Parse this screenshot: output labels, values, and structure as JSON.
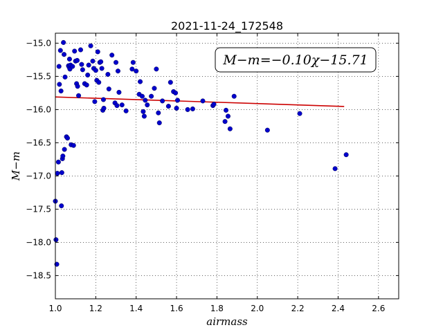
{
  "chart_data": {
    "type": "scatter",
    "title": "2021-11-24_172548",
    "xlabel": "airmass",
    "ylabel": "M−m",
    "xlim": [
      1.0,
      2.7
    ],
    "ylim": [
      -18.85,
      -14.85
    ],
    "y_inverted": true,
    "grid": true,
    "grid_style": "dotted",
    "xticks": [
      1.0,
      1.2,
      1.4,
      1.6,
      1.8,
      2.0,
      2.2,
      2.4,
      2.6
    ],
    "xtick_labels": [
      "1.0",
      "1.2",
      "1.4",
      "1.6",
      "1.8",
      "2.0",
      "2.2",
      "2.4",
      "2.6"
    ],
    "yticks": [
      -15.0,
      -15.5,
      -16.0,
      -16.5,
      -17.0,
      -17.5,
      -18.0,
      -18.5
    ],
    "ytick_labels": [
      "−15.0",
      "−15.5",
      "−16.0",
      "−16.5",
      "−17.0",
      "−17.5",
      "−18.0",
      "−18.5"
    ],
    "annotation": "M−m=−0.10χ−15.71",
    "marker_color": "#0000cc",
    "fit_color": "#cc0000",
    "fit": {
      "slope": -0.1,
      "intercept": -15.71,
      "x_range": [
        1.0,
        2.43
      ]
    },
    "points": [
      [
        1.0,
        -17.38
      ],
      [
        1.003,
        -17.96
      ],
      [
        1.007,
        -18.33
      ],
      [
        1.01,
        -16.96
      ],
      [
        1.015,
        -16.79
      ],
      [
        1.018,
        -15.35
      ],
      [
        1.02,
        -15.62
      ],
      [
        1.025,
        -15.11
      ],
      [
        1.028,
        -15.72
      ],
      [
        1.03,
        -17.45
      ],
      [
        1.032,
        -16.95
      ],
      [
        1.035,
        -16.74
      ],
      [
        1.037,
        -16.7
      ],
      [
        1.04,
        -14.99
      ],
      [
        1.043,
        -15.17
      ],
      [
        1.045,
        -16.6
      ],
      [
        1.048,
        -15.51
      ],
      [
        1.055,
        -16.41
      ],
      [
        1.06,
        -16.43
      ],
      [
        1.065,
        -15.34
      ],
      [
        1.068,
        -15.36
      ],
      [
        1.07,
        -15.24
      ],
      [
        1.072,
        -15.39
      ],
      [
        1.075,
        -15.33
      ],
      [
        1.078,
        -16.53
      ],
      [
        1.085,
        -15.35
      ],
      [
        1.09,
        -16.54
      ],
      [
        1.095,
        -15.12
      ],
      [
        1.1,
        -15.27
      ],
      [
        1.105,
        -15.61
      ],
      [
        1.108,
        -15.26
      ],
      [
        1.11,
        -15.65
      ],
      [
        1.115,
        -15.79
      ],
      [
        1.125,
        -15.1
      ],
      [
        1.13,
        -15.32
      ],
      [
        1.135,
        -15.4
      ],
      [
        1.145,
        -15.61
      ],
      [
        1.155,
        -15.63
      ],
      [
        1.16,
        -15.48
      ],
      [
        1.165,
        -15.33
      ],
      [
        1.175,
        -15.04
      ],
      [
        1.185,
        -15.27
      ],
      [
        1.19,
        -15.38
      ],
      [
        1.195,
        -15.88
      ],
      [
        1.2,
        -15.41
      ],
      [
        1.205,
        -15.56
      ],
      [
        1.21,
        -15.13
      ],
      [
        1.215,
        -15.59
      ],
      [
        1.22,
        -15.29
      ],
      [
        1.225,
        -15.28
      ],
      [
        1.23,
        -15.38
      ],
      [
        1.235,
        -16.01
      ],
      [
        1.238,
        -15.85
      ],
      [
        1.24,
        -15.98
      ],
      [
        1.26,
        -15.47
      ],
      [
        1.265,
        -15.69
      ],
      [
        1.28,
        -15.18
      ],
      [
        1.295,
        -15.9
      ],
      [
        1.3,
        -15.29
      ],
      [
        1.305,
        -15.94
      ],
      [
        1.31,
        -15.42
      ],
      [
        1.315,
        -15.74
      ],
      [
        1.33,
        -15.93
      ],
      [
        1.35,
        -16.02
      ],
      [
        1.38,
        -15.39
      ],
      [
        1.385,
        -15.29
      ],
      [
        1.4,
        -15.42
      ],
      [
        1.415,
        -15.77
      ],
      [
        1.42,
        -15.58
      ],
      [
        1.43,
        -15.8
      ],
      [
        1.435,
        -16.03
      ],
      [
        1.44,
        -16.1
      ],
      [
        1.445,
        -15.86
      ],
      [
        1.455,
        -15.93
      ],
      [
        1.475,
        -15.8
      ],
      [
        1.49,
        -15.68
      ],
      [
        1.5,
        -15.39
      ],
      [
        1.51,
        -16.05
      ],
      [
        1.515,
        -16.2
      ],
      [
        1.53,
        -15.87
      ],
      [
        1.56,
        -15.95
      ],
      [
        1.57,
        -15.59
      ],
      [
        1.585,
        -15.73
      ],
      [
        1.595,
        -15.75
      ],
      [
        1.6,
        -15.98
      ],
      [
        1.605,
        -15.86
      ],
      [
        1.655,
        -16.0
      ],
      [
        1.68,
        -15.99
      ],
      [
        1.73,
        -15.87
      ],
      [
        1.78,
        -15.94
      ],
      [
        1.785,
        -15.92
      ],
      [
        1.84,
        -16.18
      ],
      [
        1.845,
        -16.01
      ],
      [
        1.855,
        -16.1
      ],
      [
        1.865,
        -16.29
      ],
      [
        1.885,
        -15.8
      ],
      [
        2.05,
        -16.31
      ],
      [
        2.21,
        -16.06
      ],
      [
        2.385,
        -16.89
      ],
      [
        2.44,
        -16.68
      ]
    ]
  }
}
